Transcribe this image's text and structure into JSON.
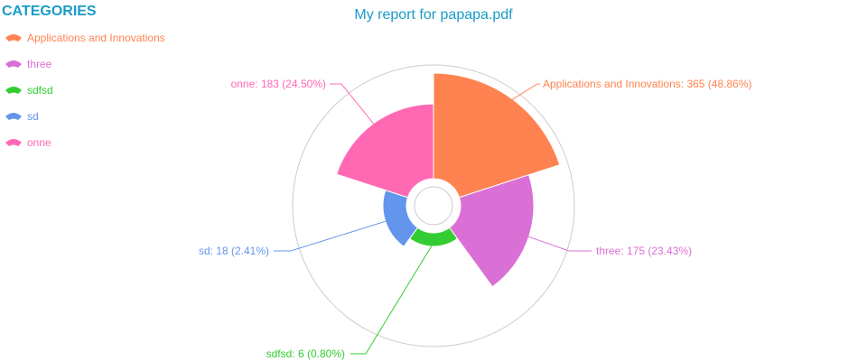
{
  "chart_data": {
    "type": "nightingale-rose",
    "title": "My report for papapa.pdf",
    "title_color": "#1a9bc7",
    "legend": {
      "title": "CATEGORIES",
      "title_color": "#1a9bc7",
      "placement": "top-left"
    },
    "series": [
      {
        "name": "Applications and Innovations",
        "value": 365,
        "label": "Applications and Innovations: 365 (48.86%)",
        "color": "#ff8350"
      },
      {
        "name": "three",
        "value": 175,
        "label": "three: 175 (23.43%)",
        "color": "#da70d6"
      },
      {
        "name": "sdfsd",
        "value": 6,
        "label": "sdfsd: 6 (0.80%)",
        "color": "#32cd32"
      },
      {
        "name": "sd",
        "value": 18,
        "label": "sd: 18 (2.41%)",
        "color": "#6495ed"
      },
      {
        "name": "onne",
        "value": 183,
        "label": "onne: 183 (24.50%)",
        "color": "#ff69b4"
      }
    ]
  }
}
